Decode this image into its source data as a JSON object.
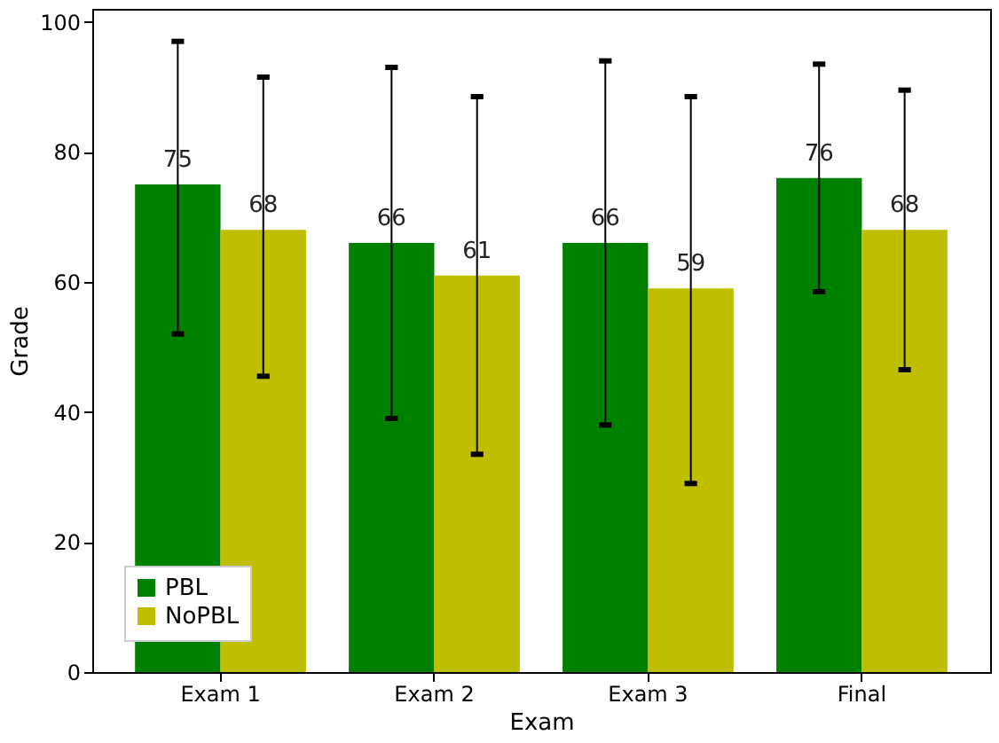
{
  "chart_data": {
    "type": "bar",
    "xlabel": "Exam",
    "ylabel": "Grade",
    "categories": [
      "Exam 1",
      "Exam 2",
      "Exam 3",
      "Final"
    ],
    "series": [
      {
        "name": "PBL",
        "color": "#008000",
        "values": [
          75,
          66,
          66,
          76
        ],
        "errors": [
          [
            52,
            97
          ],
          [
            39,
            93
          ],
          [
            38,
            94
          ],
          [
            58.5,
            93.5
          ]
        ]
      },
      {
        "name": "NoPBL",
        "color": "#bfbf00",
        "values": [
          68,
          61,
          59,
          68
        ],
        "errors": [
          [
            45.5,
            91.5
          ],
          [
            33.5,
            88.5
          ],
          [
            29,
            88.5
          ],
          [
            46.5,
            89.5
          ]
        ]
      }
    ],
    "ylim": [
      0,
      102
    ],
    "yticks": [
      0,
      20,
      40,
      60,
      80,
      100
    ],
    "data_labels": true,
    "legend": "bottom left",
    "grid": false
  }
}
